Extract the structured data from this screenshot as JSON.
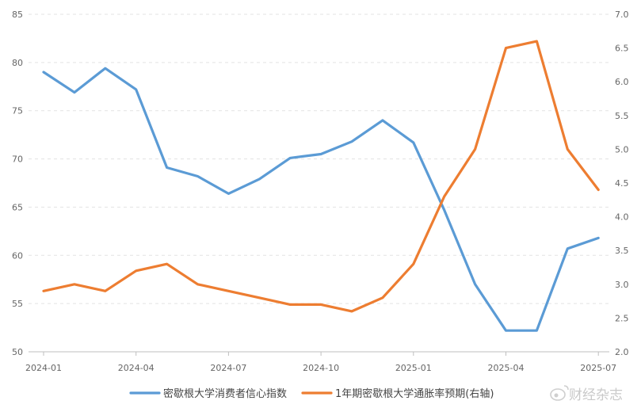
{
  "chart_data": {
    "type": "line",
    "x_ticks": [
      "2024-01",
      "2024-04",
      "2024-07",
      "2024-10",
      "2025-01",
      "2025-04",
      "2025-07"
    ],
    "x": [
      "2024-01",
      "2024-02",
      "2024-03",
      "2024-04",
      "2024-05",
      "2024-06",
      "2024-07",
      "2024-08",
      "2024-09",
      "2024-10",
      "2024-11",
      "2024-12",
      "2025-01",
      "2025-02",
      "2025-03",
      "2025-04",
      "2025-05",
      "2025-06",
      "2025-07"
    ],
    "y_left": {
      "min": 50,
      "max": 85,
      "ticks": [
        "50",
        "55",
        "60",
        "65",
        "70",
        "75",
        "80",
        "85"
      ]
    },
    "y_right": {
      "min": 2.0,
      "max": 7.0,
      "ticks": [
        "2.0",
        "2.5",
        "3.0",
        "3.5",
        "4.0",
        "4.5",
        "5.0",
        "5.5",
        "6.0",
        "6.5",
        "7.0"
      ]
    },
    "grid": "horizontal dashed",
    "legend_position": "bottom",
    "series": [
      {
        "name": "密歇根大学消费者信心指数",
        "axis": "left",
        "color": "#5b9bd5",
        "values": [
          79.0,
          76.9,
          79.4,
          77.2,
          69.1,
          68.2,
          66.4,
          67.9,
          70.1,
          70.5,
          71.8,
          74.0,
          71.7,
          64.7,
          57.0,
          52.2,
          52.2,
          60.7,
          61.8
        ]
      },
      {
        "name": "1年期密歇根大学通胀率预期(右轴)",
        "axis": "right",
        "color": "#ed7d31",
        "values": [
          2.9,
          3.0,
          2.9,
          3.2,
          3.3,
          3.0,
          2.9,
          2.8,
          2.7,
          2.7,
          2.6,
          2.8,
          3.3,
          4.3,
          5.0,
          6.5,
          6.6,
          5.0,
          4.4
        ]
      }
    ]
  },
  "watermark": {
    "text": "财经杂志"
  }
}
